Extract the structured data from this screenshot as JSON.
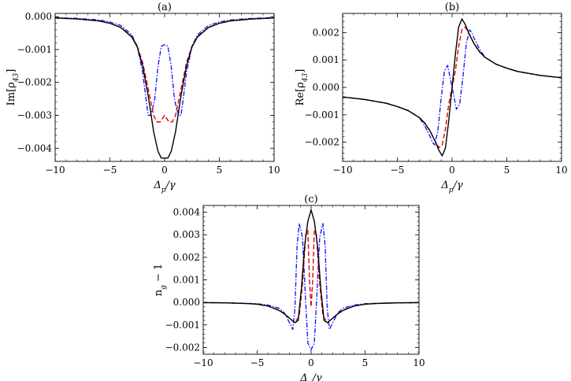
{
  "chart_data": [
    {
      "type": "line",
      "title": "(a)",
      "xlabel": "Δ_p/γ",
      "ylabel": "Im[ρ_43]",
      "xlim": [
        -10,
        10
      ],
      "ylim": [
        -0.0044,
        0.0001
      ],
      "xticks": [
        -10,
        -5,
        0,
        5,
        10
      ],
      "yticks": [
        0.0,
        -0.001,
        -0.002,
        -0.003,
        -0.004
      ],
      "ytick_labels": [
        "0.000",
        "−0.001",
        "−0.002",
        "−0.003",
        "−0.004"
      ],
      "series": [
        {
          "color": "#000000",
          "dash": "solid",
          "x": [
            -10,
            -8,
            -6,
            -5,
            -4,
            -3,
            -2.5,
            -2,
            -1.5,
            -1,
            -0.6,
            -0.3,
            0,
            0.3,
            0.6,
            1,
            1.5,
            2,
            2.5,
            3,
            4,
            5,
            6,
            8,
            10
          ],
          "y": [
            -4e-05,
            -7e-05,
            -0.00013,
            -0.0002,
            -0.00033,
            -0.00062,
            -0.00092,
            -0.0015,
            -0.0024,
            -0.0035,
            -0.0041,
            -0.0043,
            -0.0043,
            -0.0043,
            -0.0041,
            -0.0035,
            -0.0024,
            -0.0015,
            -0.00092,
            -0.00062,
            -0.00033,
            -0.0002,
            -0.00013,
            -7e-05,
            -4e-05
          ]
        },
        {
          "color": "#dd0000",
          "dash": "dashed",
          "x": [
            -10,
            -8,
            -6,
            -5,
            -4,
            -3,
            -2.5,
            -2,
            -1.5,
            -1,
            -0.7,
            -0.4,
            -0.2,
            0,
            0.2,
            0.4,
            0.7,
            1,
            1.5,
            2,
            2.5,
            3,
            4,
            5,
            6,
            8,
            10
          ],
          "y": [
            -4e-05,
            -7e-05,
            -0.00013,
            -0.0002,
            -0.00033,
            -0.0006,
            -0.0009,
            -0.0014,
            -0.0022,
            -0.003,
            -0.0032,
            -0.0032,
            -0.0031,
            -0.003,
            -0.0031,
            -0.0032,
            -0.0032,
            -0.003,
            -0.0022,
            -0.0014,
            -0.0009,
            -0.0006,
            -0.00033,
            -0.0002,
            -0.00013,
            -7e-05,
            -4e-05
          ]
        },
        {
          "color": "#1a1aff",
          "dash": "dashdot",
          "x": [
            -10,
            -8,
            -6,
            -5,
            -4,
            -3,
            -2.5,
            -2,
            -1.7,
            -1.5,
            -1.3,
            -1.1,
            -0.9,
            -0.6,
            -0.3,
            0,
            0.3,
            0.6,
            0.9,
            1.1,
            1.3,
            1.5,
            1.7,
            2,
            2.5,
            3,
            4,
            5,
            6,
            8,
            10
          ],
          "y": [
            -3e-05,
            -5e-05,
            -0.0001,
            -0.00016,
            -0.00027,
            -0.00055,
            -0.0009,
            -0.0017,
            -0.0025,
            -0.003,
            -0.003,
            -0.0028,
            -0.0025,
            -0.0015,
            -0.0009,
            -0.00085,
            -0.0009,
            -0.0015,
            -0.0025,
            -0.0028,
            -0.003,
            -0.003,
            -0.0025,
            -0.0017,
            -0.0009,
            -0.00055,
            -0.00027,
            -0.00016,
            -0.0001,
            -5e-05,
            -3e-05
          ]
        }
      ]
    },
    {
      "type": "line",
      "title": "(b)",
      "xlabel": "Δ_p/γ",
      "ylabel": "Re[ρ_43]",
      "xlim": [
        -10,
        10
      ],
      "ylim": [
        -0.0027,
        0.0027
      ],
      "xticks": [
        -10,
        -5,
        0,
        5,
        10
      ],
      "yticks": [
        0.002,
        0.001,
        0.0,
        -0.001,
        -0.002
      ],
      "ytick_labels": [
        "0.002",
        "0.001",
        "0.000",
        "−0.001",
        "−0.002"
      ],
      "series": [
        {
          "color": "#000000",
          "dash": "solid",
          "x": [
            -10,
            -8,
            -6,
            -5,
            -4,
            -3,
            -2.5,
            -2,
            -1.5,
            -1.2,
            -0.9,
            -0.6,
            -0.3,
            0,
            0.3,
            0.6,
            0.9,
            1.2,
            1.5,
            2,
            2.5,
            3,
            4,
            5,
            6,
            8,
            10
          ],
          "y": [
            -0.00035,
            -0.00044,
            -0.00058,
            -0.0007,
            -0.00085,
            -0.0011,
            -0.0013,
            -0.0016,
            -0.002,
            -0.0023,
            -0.0025,
            -0.0022,
            -0.0012,
            0.0,
            0.0012,
            0.0022,
            0.0025,
            0.0023,
            0.002,
            0.0016,
            0.0013,
            0.0011,
            0.00085,
            0.0007,
            0.00058,
            0.00044,
            0.00035
          ]
        },
        {
          "color": "#dd0000",
          "dash": "dashed",
          "x": [
            -10,
            -8,
            -6,
            -5,
            -4,
            -3,
            -2.5,
            -2,
            -1.5,
            -1.2,
            -0.9,
            -0.6,
            -0.3,
            0,
            0.3,
            0.6,
            0.9,
            1.2,
            1.5,
            2,
            2.5,
            3,
            4,
            5,
            6,
            8,
            10
          ],
          "y": [
            -0.00035,
            -0.00044,
            -0.00058,
            -0.0007,
            -0.00085,
            -0.0011,
            -0.0013,
            -0.0016,
            -0.002,
            -0.0022,
            -0.0021,
            -0.0015,
            -0.0006,
            0.0,
            0.0006,
            0.0015,
            0.0021,
            0.0022,
            0.002,
            0.0016,
            0.0013,
            0.0011,
            0.00085,
            0.0007,
            0.00058,
            0.00044,
            0.00035
          ]
        },
        {
          "color": "#1a1aff",
          "dash": "dashdot",
          "x": [
            -10,
            -8,
            -6,
            -5,
            -4,
            -3,
            -2.5,
            -2,
            -1.8,
            -1.6,
            -1.3,
            -1.0,
            -0.7,
            -0.4,
            0,
            0.4,
            0.7,
            1.0,
            1.3,
            1.6,
            1.8,
            2,
            2.5,
            3,
            4,
            5,
            6,
            8,
            10
          ],
          "y": [
            -0.00035,
            -0.00044,
            -0.00058,
            -0.0007,
            -0.00085,
            -0.0011,
            -0.0014,
            -0.0018,
            -0.002,
            -0.0021,
            -0.0016,
            -0.0004,
            0.0006,
            0.0008,
            0.0,
            -0.0008,
            -0.0006,
            0.0004,
            0.0016,
            0.0021,
            0.002,
            0.0018,
            0.0014,
            0.0011,
            0.00085,
            0.0007,
            0.00058,
            0.00044,
            0.00035
          ]
        }
      ]
    },
    {
      "type": "line",
      "title": "(c)",
      "xlabel": "Δ_p/γ",
      "ylabel": "n_g − 1",
      "xlim": [
        -10,
        10
      ],
      "ylim": [
        -0.0023,
        0.0043
      ],
      "xticks": [
        -10,
        -5,
        0,
        5,
        10
      ],
      "yticks": [
        0.004,
        0.003,
        0.002,
        0.001,
        0.0,
        -0.001,
        -0.002
      ],
      "ytick_labels": [
        "0.004",
        "0.003",
        "0.002",
        "0.001",
        "0.000",
        "−0.001",
        "−0.002"
      ],
      "series": [
        {
          "color": "#000000",
          "dash": "solid",
          "x": [
            -10,
            -8,
            -6,
            -5,
            -4,
            -3,
            -2.5,
            -2,
            -1.5,
            -1.2,
            -0.9,
            -0.6,
            -0.3,
            0,
            0.3,
            0.6,
            0.9,
            1.2,
            1.5,
            2,
            2.5,
            3,
            4,
            5,
            6,
            8,
            10
          ],
          "y": [
            -1e-05,
            -2e-05,
            -5e-05,
            -8e-05,
            -0.00016,
            -0.00035,
            -0.0005,
            -0.0007,
            -0.0009,
            -0.0008,
            0.0006,
            0.0025,
            0.0036,
            0.0041,
            0.0036,
            0.0025,
            0.0006,
            -0.0008,
            -0.0009,
            -0.0007,
            -0.0005,
            -0.00035,
            -0.00016,
            -8e-05,
            -5e-05,
            -2e-05,
            -1e-05
          ]
        },
        {
          "color": "#dd0000",
          "dash": "dashed",
          "x": [
            -10,
            -8,
            -6,
            -5,
            -4,
            -3,
            -2.5,
            -2,
            -1.5,
            -1.1,
            -0.8,
            -0.5,
            -0.3,
            -0.15,
            0,
            0.15,
            0.3,
            0.5,
            0.8,
            1.1,
            1.5,
            2,
            2.5,
            3,
            4,
            5,
            6,
            8,
            10
          ],
          "y": [
            -1e-05,
            -2e-05,
            -5e-05,
            -8e-05,
            -0.00016,
            -0.00033,
            -0.0005,
            -0.0007,
            -0.0009,
            -0.0006,
            0.0008,
            0.003,
            0.0032,
            0.001,
            -0.0002,
            0.001,
            0.0032,
            0.003,
            0.0008,
            -0.0006,
            -0.0009,
            -0.0007,
            -0.0005,
            -0.00033,
            -0.00016,
            -8e-05,
            -5e-05,
            -2e-05,
            -1e-05
          ]
        },
        {
          "color": "#1a1aff",
          "dash": "dashdot",
          "x": [
            -10,
            -8,
            -6,
            -5,
            -4,
            -3,
            -2.5,
            -2,
            -1.7,
            -1.5,
            -1.3,
            -1.1,
            -0.8,
            -0.5,
            -0.3,
            0,
            0.3,
            0.5,
            0.8,
            1.1,
            1.3,
            1.5,
            1.7,
            2,
            2.5,
            3,
            4,
            5,
            6,
            8,
            10
          ],
          "y": [
            -1e-05,
            -2e-05,
            -4e-05,
            -6e-05,
            -0.00012,
            -0.00025,
            -0.00045,
            -0.0009,
            -0.0012,
            -0.0003,
            0.0025,
            0.0035,
            0.0029,
            0.0,
            -0.0018,
            -0.0021,
            -0.0018,
            0.0,
            0.0029,
            0.0035,
            0.0025,
            -0.0003,
            -0.0012,
            -0.0009,
            -0.00045,
            -0.00025,
            -0.00012,
            -6e-05,
            -4e-05,
            -2e-05,
            -1e-05
          ]
        }
      ]
    }
  ]
}
